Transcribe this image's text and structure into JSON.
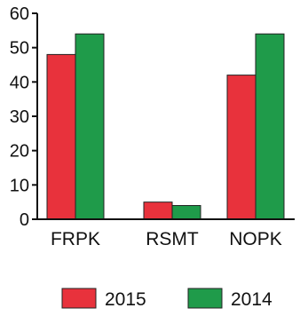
{
  "chart_data": {
    "type": "bar",
    "categories": [
      "FRPK",
      "RSMT",
      "NOPK"
    ],
    "series": [
      {
        "name": "2015",
        "color": "#e8323c",
        "values": [
          48,
          5,
          42
        ]
      },
      {
        "name": "2014",
        "color": "#1f9b4a",
        "values": [
          54,
          4,
          54
        ]
      }
    ],
    "yticks": [
      "0",
      "10",
      "20",
      "30",
      "40",
      "50",
      "60"
    ],
    "ylim": [
      0,
      60
    ],
    "title": "",
    "xlabel": "",
    "ylabel": "",
    "grid": false,
    "legend_position": "bottom"
  }
}
